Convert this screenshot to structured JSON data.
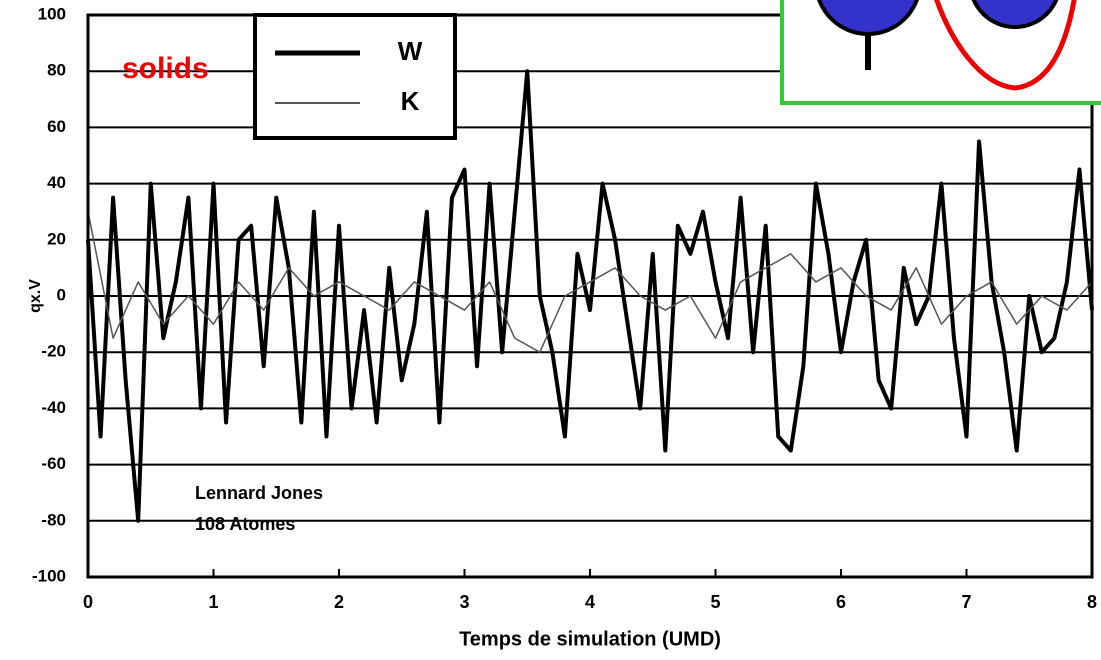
{
  "chart_data": {
    "type": "line",
    "xlabel": "Temps de simulation (UMD)",
    "ylabel": "qx.V",
    "xlim": [
      0,
      8
    ],
    "xticks": [
      0,
      1,
      2,
      3,
      4,
      5,
      6,
      7,
      8
    ],
    "ylim": [
      -100,
      100
    ],
    "yticks": [
      -100,
      -80,
      -60,
      -40,
      -20,
      0,
      20,
      40,
      60,
      80,
      100
    ],
    "grid": true,
    "legend": "top-left",
    "annotations": [
      "solids",
      "Lennard Jones",
      "108 Atomes"
    ],
    "series": [
      {
        "name": "W",
        "color": "#000000",
        "x": [
          0,
          0.1,
          0.2,
          0.3,
          0.4,
          0.5,
          0.6,
          0.7,
          0.8,
          0.9,
          1,
          1.1,
          1.2,
          1.3,
          1.4,
          1.5,
          1.6,
          1.7,
          1.8,
          1.9,
          2,
          2.1,
          2.2,
          2.3,
          2.4,
          2.5,
          2.6,
          2.7,
          2.8,
          2.9,
          3,
          3.1,
          3.2,
          3.3,
          3.4,
          3.5,
          3.6,
          3.7,
          3.8,
          3.9,
          4,
          4.1,
          4.2,
          4.3,
          4.4,
          4.5,
          4.6,
          4.7,
          4.8,
          4.9,
          5,
          5.1,
          5.2,
          5.3,
          5.4,
          5.5,
          5.6,
          5.7,
          5.8,
          5.9,
          6,
          6.1,
          6.2,
          6.3,
          6.4,
          6.5,
          6.6,
          6.7,
          6.8,
          6.9,
          7,
          7.1,
          7.2,
          7.3,
          7.4,
          7.5,
          7.6,
          7.7,
          7.8,
          7.9,
          8
        ],
        "values": [
          20,
          -50,
          35,
          -30,
          -80,
          40,
          -15,
          5,
          35,
          -40,
          40,
          -45,
          20,
          25,
          -25,
          35,
          10,
          -45,
          30,
          -50,
          25,
          -40,
          -5,
          -45,
          10,
          -30,
          -10,
          30,
          -45,
          35,
          45,
          -25,
          40,
          -20,
          30,
          80,
          0,
          -20,
          -50,
          15,
          -5,
          40,
          20,
          -10,
          -40,
          15,
          -55,
          25,
          15,
          30,
          5,
          -15,
          35,
          -20,
          25,
          -50,
          -55,
          -25,
          40,
          15,
          -20,
          5,
          20,
          -30,
          -40,
          10,
          -10,
          0,
          40,
          -15,
          -50,
          55,
          5,
          -20,
          -55,
          0,
          -20,
          -15,
          5,
          45,
          -5
        ]
      },
      {
        "name": "K",
        "color": "#555555",
        "x": [
          0,
          0.2,
          0.4,
          0.6,
          0.8,
          1,
          1.2,
          1.4,
          1.6,
          1.8,
          2,
          2.2,
          2.4,
          2.6,
          2.8,
          3,
          3.2,
          3.4,
          3.6,
          3.8,
          4,
          4.2,
          4.4,
          4.6,
          4.8,
          5,
          5.2,
          5.4,
          5.6,
          5.8,
          6,
          6.2,
          6.4,
          6.6,
          6.8,
          7,
          7.2,
          7.4,
          7.6,
          7.8,
          8
        ],
        "values": [
          30,
          -15,
          5,
          -10,
          0,
          -10,
          5,
          -5,
          10,
          0,
          5,
          0,
          -5,
          5,
          0,
          -5,
          5,
          -15,
          -20,
          0,
          5,
          10,
          0,
          -5,
          0,
          -15,
          5,
          10,
          15,
          5,
          10,
          0,
          -5,
          10,
          -10,
          0,
          5,
          -10,
          0,
          -5,
          5
        ]
      }
    ]
  }
}
